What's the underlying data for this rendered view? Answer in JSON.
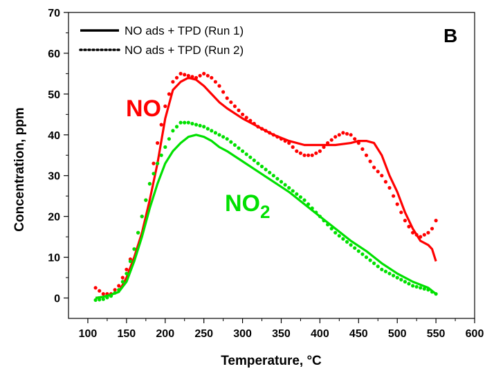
{
  "chart_data": {
    "type": "line",
    "panel_label": "B",
    "xlabel": "Temperature, °C",
    "ylabel": "Concentration, ppm",
    "xlim": [
      75,
      600
    ],
    "ylim": [
      -5,
      70
    ],
    "xticks": [
      100,
      150,
      200,
      250,
      300,
      350,
      400,
      450,
      500,
      550,
      600
    ],
    "yticks": [
      0,
      10,
      20,
      30,
      40,
      50,
      60,
      70
    ],
    "grid": false,
    "legend": {
      "position": "top-left",
      "entries": [
        {
          "label": "NO ads + TPD (Run 1)",
          "style": "solid"
        },
        {
          "label": "NO ads + TPD (Run 2)",
          "style": "dotted"
        }
      ]
    },
    "annotations": [
      {
        "text": "NO",
        "color": "#ff0000"
      },
      {
        "text": "NO",
        "subscript": "2",
        "color": "#00e000"
      }
    ],
    "colors": {
      "NO": "#ff0000",
      "NO2": "#00e000"
    },
    "series": [
      {
        "species": "NO",
        "run": 1,
        "style": "solid",
        "color": "#ff0000",
        "x": [
          110,
          120,
          130,
          140,
          150,
          160,
          170,
          180,
          190,
          200,
          210,
          220,
          230,
          240,
          250,
          260,
          270,
          280,
          300,
          320,
          340,
          360,
          380,
          400,
          420,
          440,
          450,
          460,
          470,
          480,
          490,
          500,
          510,
          520,
          530,
          540,
          545,
          550
        ],
        "y": [
          0,
          0.3,
          0.8,
          1.5,
          5,
          10,
          16,
          24,
          33,
          44,
          51,
          53,
          54,
          53.5,
          52,
          50,
          48,
          46.5,
          44,
          42,
          40,
          38.5,
          37.5,
          37.5,
          37.5,
          38,
          38.5,
          38.5,
          38,
          35,
          30,
          26,
          21,
          17,
          14,
          13,
          12,
          9
        ]
      },
      {
        "species": "NO",
        "run": 2,
        "style": "dotted",
        "color": "#ff0000",
        "x": [
          110,
          120,
          130,
          140,
          150,
          160,
          170,
          180,
          190,
          200,
          210,
          220,
          230,
          240,
          250,
          260,
          270,
          280,
          300,
          320,
          340,
          360,
          370,
          380,
          390,
          400,
          410,
          420,
          430,
          440,
          450,
          460,
          470,
          480,
          490,
          500,
          510,
          520,
          530,
          540,
          545,
          550
        ],
        "y": [
          2.5,
          1,
          1,
          3,
          7,
          12,
          20,
          28,
          38,
          47,
          53,
          55,
          54.5,
          54,
          55,
          54,
          52,
          49,
          45,
          42,
          40,
          38,
          36,
          35,
          35,
          36,
          38,
          39.5,
          40.5,
          40,
          38,
          35,
          32,
          30,
          27,
          23,
          19,
          16,
          15,
          16,
          17,
          19
        ]
      },
      {
        "species": "NO2",
        "run": 1,
        "style": "solid",
        "color": "#00e000",
        "x": [
          110,
          120,
          130,
          140,
          150,
          160,
          170,
          180,
          190,
          200,
          210,
          220,
          230,
          240,
          250,
          260,
          270,
          280,
          300,
          320,
          340,
          360,
          380,
          400,
          420,
          440,
          460,
          480,
          500,
          520,
          540,
          550
        ],
        "y": [
          0,
          0.3,
          0.8,
          1.5,
          4,
          9,
          15,
          22,
          28,
          33,
          36,
          38,
          39.5,
          40,
          39.5,
          38.5,
          37,
          36,
          33.5,
          31,
          28.5,
          26,
          23,
          20,
          17,
          14,
          11.5,
          8.5,
          6,
          4,
          2.5,
          1
        ]
      },
      {
        "species": "NO2",
        "run": 2,
        "style": "dotted",
        "color": "#00e000",
        "x": [
          110,
          120,
          130,
          140,
          150,
          160,
          170,
          180,
          190,
          200,
          210,
          220,
          230,
          240,
          250,
          260,
          270,
          280,
          300,
          320,
          340,
          360,
          380,
          400,
          420,
          440,
          460,
          480,
          500,
          520,
          540,
          550
        ],
        "y": [
          -0.5,
          -0.3,
          0.5,
          2,
          6,
          12,
          20,
          28,
          33,
          37,
          41,
          43,
          43,
          42.5,
          42,
          41,
          40,
          39,
          36,
          33,
          30,
          27,
          24,
          20,
          16,
          13,
          10,
          7,
          5,
          3,
          2,
          1
        ]
      }
    ]
  }
}
